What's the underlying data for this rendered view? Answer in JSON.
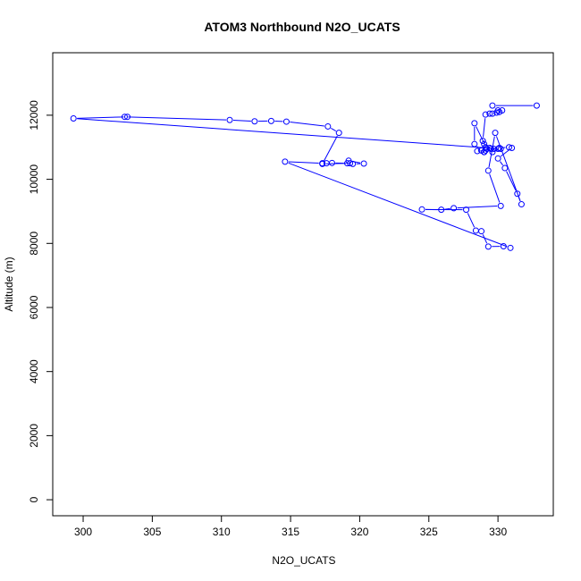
{
  "chart_data": {
    "type": "scatter",
    "title": "ATOM3 Northbound N2O_UCATS",
    "xlabel": "N2O_UCATS",
    "ylabel": "Altitude (m)",
    "xlim": [
      297.8,
      334.0
    ],
    "ylim": [
      -500,
      13950
    ],
    "xticks": [
      300,
      305,
      310,
      315,
      320,
      325,
      330
    ],
    "yticks": [
      0,
      2000,
      4000,
      6000,
      8000,
      10000,
      12000
    ],
    "xtick_labels": [
      "300",
      "305",
      "310",
      "315",
      "320",
      "325",
      "330"
    ],
    "ytick_labels": [
      "0",
      "2000",
      "4000",
      "6000",
      "8000",
      "10000",
      "12000"
    ],
    "grid": false,
    "legend": "none",
    "colors": {
      "series": "#0000ff",
      "axis": "#000000"
    },
    "series": [
      {
        "x": [
          332.8,
          329.6,
          330.0,
          330.3,
          330.1,
          329.9,
          329.6,
          329.4,
          329.1,
          328.9,
          329.0,
          329.2,
          328.3,
          328.3,
          328.8,
          329.0,
          329.4,
          329.7,
          330.0,
          330.1,
          330.8,
          331.0,
          330.0,
          330.5,
          331.4,
          331.7,
          329.8,
          329.3,
          330.2,
          326.8,
          325.9,
          324.5,
          327.7,
          328.4,
          328.8,
          329.3,
          330.4,
          330.9,
          314.6,
          317.3,
          317.6,
          318.0,
          319.1,
          319.5,
          320.3,
          319.2,
          319.3,
          317.3,
          318.5,
          317.7,
          314.7,
          313.6,
          312.4,
          310.6,
          303.0,
          303.2,
          299.3,
          330.2,
          329.6,
          329.1,
          328.8,
          329.5,
          329.0,
          329.1,
          328.5
        ],
        "y": [
          12300,
          12300,
          12150,
          12150,
          12100,
          12080,
          12050,
          12050,
          12020,
          11200,
          11100,
          10950,
          11750,
          11100,
          10900,
          10850,
          10980,
          10950,
          10950,
          10980,
          11000,
          10980,
          10650,
          10350,
          9550,
          9220,
          11450,
          10270,
          9170,
          9100,
          9050,
          9060,
          9050,
          8400,
          8380,
          7900,
          7910,
          7860,
          10550,
          10500,
          10500,
          10510,
          10500,
          10480,
          10490,
          10580,
          10500,
          10480,
          11450,
          11650,
          11800,
          11820,
          11810,
          11850,
          11950,
          11950,
          11900,
          10950,
          10850,
          11000,
          10900,
          10950,
          10850,
          10900,
          10880
        ]
      }
    ]
  }
}
